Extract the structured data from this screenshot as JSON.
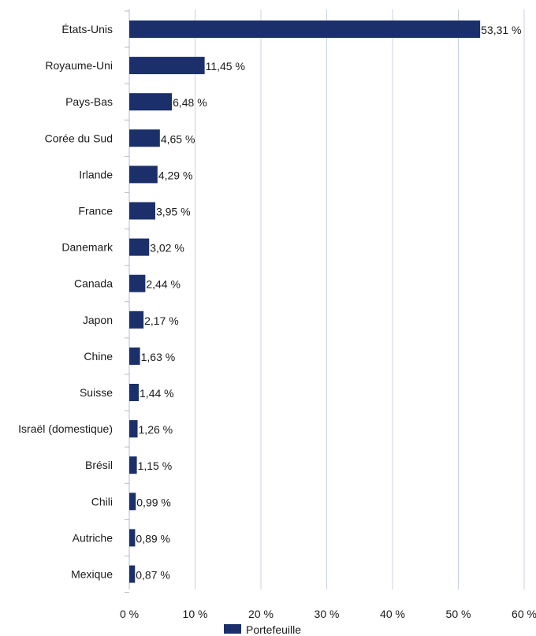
{
  "chart_data": {
    "type": "bar",
    "orientation": "horizontal",
    "categories": [
      "États-Unis",
      "Royaume-Uni",
      "Pays-Bas",
      "Corée du Sud",
      "Irlande",
      "France",
      "Danemark",
      "Canada",
      "Japon",
      "Chine",
      "Suisse",
      "Israël (domestique)",
      "Brésil",
      "Chili",
      "Autriche",
      "Mexique"
    ],
    "series": [
      {
        "name": "Portefeuille",
        "values": [
          53.31,
          11.45,
          6.48,
          4.65,
          4.29,
          3.95,
          3.02,
          2.44,
          2.17,
          1.63,
          1.44,
          1.26,
          1.15,
          0.99,
          0.89,
          0.87
        ],
        "value_labels": [
          "53,31 %",
          "11,45 %",
          "6,48 %",
          "4,65 %",
          "4,29 %",
          "3,95 %",
          "3,02 %",
          "2,44 %",
          "2,17 %",
          "1,63 %",
          "1,44 %",
          "1,26 %",
          "1,15 %",
          "0,99 %",
          "0,89 %",
          "0,87 %"
        ]
      }
    ],
    "xlim": [
      0,
      60
    ],
    "x_ticks": [
      0,
      10,
      20,
      30,
      40,
      50,
      60
    ],
    "x_tick_labels": [
      "0 %",
      "10 %",
      "20 %",
      "30 %",
      "40 %",
      "50 %",
      "60 %"
    ],
    "grid": "vertical",
    "legend": "bottom",
    "colors": {
      "bar": "#1b2f6b",
      "grid": "#c8d2e0",
      "axis": "#b0bccd"
    }
  }
}
